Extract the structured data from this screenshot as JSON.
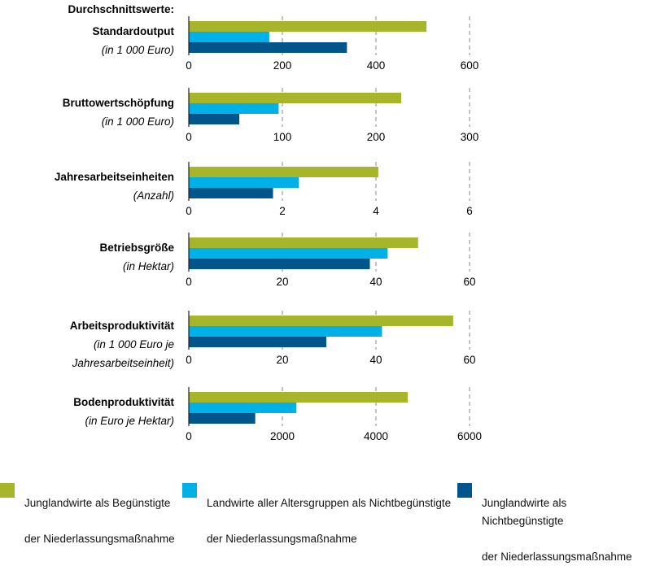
{
  "header": {
    "title": "Durchschnittswerte:"
  },
  "chart_data": {
    "type": "bar",
    "orientation": "horizontal",
    "series_names": [
      "Junglandwirte als Begünstigte der Niederlassungsmaßnahme",
      "Landwirte aller Altersgruppen als Nichtbegünstigte der Niederlassungsmaßnahme",
      "Junglandwirte als Nichtbegünstigte der Niederlassungsmaßnahme"
    ],
    "colors": [
      "#a7b52a",
      "#00b1e8",
      "#00558b"
    ],
    "panels": [
      {
        "label": "Standardoutput",
        "unit": "(in 1 000 Euro)",
        "unit_lines": [
          "(in 1 000 Euro)"
        ],
        "xlim": [
          0,
          600
        ],
        "ticks": [
          0,
          200,
          400,
          600
        ],
        "values": [
          508,
          172,
          338
        ]
      },
      {
        "label": "Bruttowertschöpfung",
        "unit": "(in 1 000 Euro)",
        "unit_lines": [
          "(in 1 000 Euro)"
        ],
        "xlim": [
          0,
          300
        ],
        "ticks": [
          0,
          100,
          200,
          300
        ],
        "values": [
          227,
          96,
          54
        ]
      },
      {
        "label": "Jahresarbeitseinheiten",
        "unit": "(Anzahl)",
        "unit_lines": [
          "(Anzahl)"
        ],
        "xlim": [
          0,
          6
        ],
        "ticks": [
          0,
          2,
          4,
          6
        ],
        "values": [
          4.05,
          2.35,
          1.8
        ]
      },
      {
        "label": "Betriebsgröße",
        "unit": "(in Hektar)",
        "unit_lines": [
          "(in Hektar)"
        ],
        "xlim": [
          0,
          60
        ],
        "ticks": [
          0,
          20,
          40,
          60
        ],
        "values": [
          49,
          42.5,
          38.7
        ]
      },
      {
        "label": "Arbeitsproduktivität",
        "unit": "(in 1 000 Euro je Jahresarbeitseinheit)",
        "unit_lines": [
          "(in 1 000 Euro je",
          "Jahresarbeitseinheit)"
        ],
        "xlim": [
          0,
          60
        ],
        "ticks": [
          0,
          20,
          40,
          60
        ],
        "values": [
          56.5,
          41.3,
          29.4
        ]
      },
      {
        "label": "Bodenproduktivität",
        "unit": "(in Euro je Hektar)",
        "unit_lines": [
          "(in Euro je Hektar)"
        ],
        "xlim": [
          0,
          6000
        ],
        "ticks": [
          0,
          2000,
          4000,
          6000
        ],
        "values": [
          4680,
          2300,
          1420
        ]
      }
    ]
  },
  "legend": {
    "items": [
      {
        "lines": [
          "Junglandwirte als Begünstigte",
          "der Niederlassungsmaßnahme"
        ],
        "color": "#a7b52a"
      },
      {
        "lines": [
          "Landwirte aller Altersgruppen als Nichtbegünstigte",
          "der Niederlassungsmaßnahme"
        ],
        "color": "#00b1e8"
      },
      {
        "lines": [
          "Junglandwirte als Nichtbegünstigte",
          "der Niederlassungsmaßnahme"
        ],
        "color": "#00558b"
      }
    ]
  }
}
